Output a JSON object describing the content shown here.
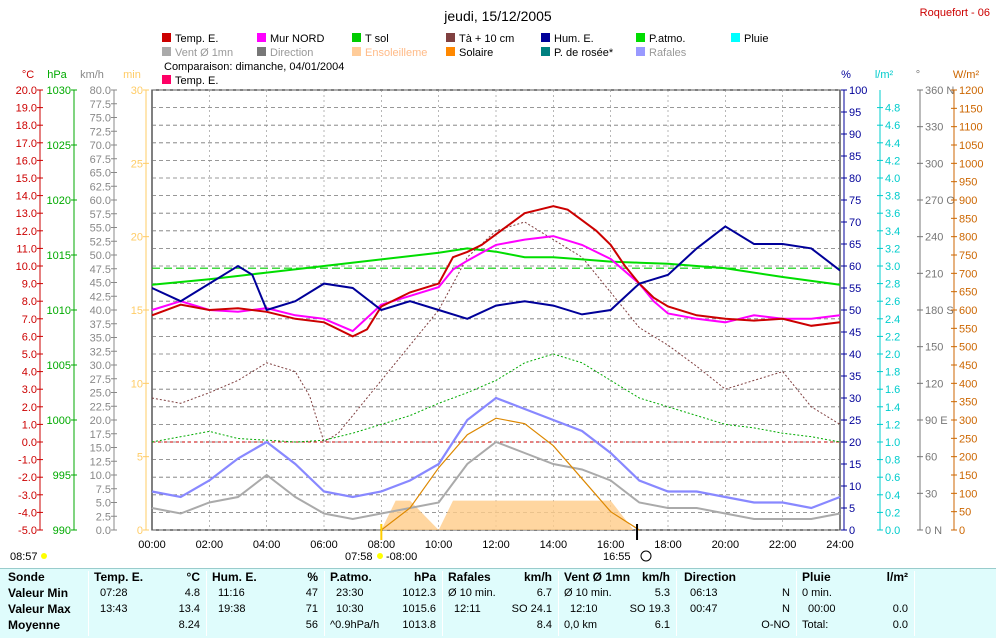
{
  "title": "jeudi, 15/12/2005",
  "station": "Roquefort - 06",
  "comparison": "Comparaison: dimanche, 04/01/2004",
  "legend": [
    {
      "label": "Temp. E.",
      "color": "#cc0000"
    },
    {
      "label": "Mur NORD",
      "color": "#ff00ff"
    },
    {
      "label": "T sol",
      "color": "#00cc00"
    },
    {
      "label": "Tà + 10 cm",
      "color": "#804040"
    },
    {
      "label": "Hum. E.",
      "color": "#000099"
    },
    {
      "label": "P.atmo.",
      "color": "#00dd00"
    },
    {
      "label": "Pluie",
      "color": "#00ffff"
    },
    {
      "label": "Vent Ø 1mn",
      "color": "#aaaaaa"
    },
    {
      "label": "Direction",
      "color": "#777777"
    },
    {
      "label": "Ensoleilleme",
      "color": "#ffcc99"
    },
    {
      "label": "Solaire",
      "color": "#ff8800"
    },
    {
      "label": "P. de rosée*",
      "color": "#008080"
    },
    {
      "label": "Rafales",
      "color": "#9999ff"
    },
    {
      "label": "Temp. E.",
      "color": "#ff0066"
    }
  ],
  "axes": {
    "temp": {
      "unit": "°C",
      "ticks": [
        "20.0",
        "19.0",
        "18.0",
        "17.0",
        "16.0",
        "15.0",
        "14.0",
        "13.0",
        "12.0",
        "11.0",
        "10.0",
        "9.0",
        "8.0",
        "7.0",
        "6.0",
        "5.0",
        "4.0",
        "3.0",
        "2.0",
        "1.0",
        "0.0",
        "-1.0",
        "-2.0",
        "-3.0",
        "-4.0",
        "-5.0"
      ],
      "color": "#cc0000"
    },
    "press": {
      "unit": "hPa",
      "ticks": [
        "1030",
        "1025",
        "1020",
        "1015",
        "1010",
        "1005",
        "1000",
        "995",
        "990"
      ],
      "color": "#00aa00"
    },
    "wind": {
      "unit": "km/h",
      "ticks": [
        "80.0",
        "77.5",
        "75.0",
        "72.5",
        "70.0",
        "67.5",
        "65.0",
        "62.5",
        "60.0",
        "57.5",
        "55.0",
        "52.5",
        "50.0",
        "47.5",
        "45.0",
        "42.5",
        "40.0",
        "37.5",
        "35.0",
        "32.5",
        "30.0",
        "27.5",
        "25.0",
        "22.5",
        "20.0",
        "17.5",
        "15.0",
        "12.5",
        "10.0",
        "7.5",
        "5.0",
        "2.5",
        "0.0"
      ],
      "color": "#888888"
    },
    "min": {
      "unit": "min",
      "ticks": [
        "30",
        "25",
        "20",
        "15",
        "10",
        "5",
        "0"
      ],
      "color": "#ffcc66"
    },
    "hum": {
      "unit": "%",
      "ticks": [
        "100",
        "95",
        "90",
        "85",
        "80",
        "75",
        "70",
        "65",
        "60",
        "55",
        "50",
        "45",
        "40",
        "35",
        "30",
        "25",
        "20",
        "15",
        "10",
        "5",
        "0"
      ],
      "color": "#000099"
    },
    "rain": {
      "unit": "l/m²",
      "ticks": [
        "4.8",
        "4.6",
        "4.4",
        "4.2",
        "4.0",
        "3.8",
        "3.6",
        "3.4",
        "3.2",
        "3.0",
        "2.8",
        "2.6",
        "2.4",
        "2.2",
        "2.0",
        "1.8",
        "1.6",
        "1.4",
        "1.2",
        "1.0",
        "0.8",
        "0.6",
        "0.4",
        "0.2",
        "0.0"
      ],
      "color": "#00cccc"
    },
    "dir": {
      "unit": "°",
      "ticks": [
        "360 N",
        "330",
        "300",
        "270 O",
        "240",
        "210",
        "180 S",
        "150",
        "120",
        "90 E",
        "60",
        "30",
        "0 N"
      ],
      "color": "#777777"
    },
    "solar": {
      "unit": "W/m²",
      "ticks": [
        "1200",
        "1150",
        "1100",
        "1050",
        "1000",
        "950",
        "900",
        "850",
        "800",
        "750",
        "700",
        "650",
        "600",
        "550",
        "500",
        "450",
        "400",
        "350",
        "300",
        "250",
        "200",
        "150",
        "100",
        "50",
        "0"
      ],
      "color": "#cc6600"
    },
    "time": [
      "00:00",
      "02:00",
      "04:00",
      "06:00",
      "08:00",
      "10:00",
      "12:00",
      "14:00",
      "16:00",
      "18:00",
      "20:00",
      "22:00",
      "24:00"
    ]
  },
  "sun": {
    "dawn": "08:57",
    "rise": "07:58",
    "rise2": "08:00",
    "set": "16:55"
  },
  "chart_data": {
    "type": "line",
    "x_unit": "hours",
    "series": [
      {
        "name": "Temp. E.",
        "unit": "°C",
        "points": [
          [
            0,
            7.2
          ],
          [
            1,
            7.8
          ],
          [
            2,
            7.5
          ],
          [
            3,
            7.6
          ],
          [
            4,
            7.4
          ],
          [
            5,
            7.0
          ],
          [
            6,
            6.8
          ],
          [
            7,
            6.0
          ],
          [
            7.5,
            6.4
          ],
          [
            8,
            7.7
          ],
          [
            9,
            8.5
          ],
          [
            10,
            9.0
          ],
          [
            10.5,
            10.5
          ],
          [
            11,
            10.8
          ],
          [
            11.5,
            11.2
          ],
          [
            12,
            11.8
          ],
          [
            12.5,
            12.4
          ],
          [
            13,
            13.0
          ],
          [
            13.5,
            13.2
          ],
          [
            14,
            13.4
          ],
          [
            14.5,
            13.2
          ],
          [
            15,
            12.6
          ],
          [
            15.5,
            12.0
          ],
          [
            16,
            11.2
          ],
          [
            16.5,
            10.0
          ],
          [
            17,
            9.0
          ],
          [
            17.5,
            8.2
          ],
          [
            18,
            7.7
          ],
          [
            19,
            7.2
          ],
          [
            20,
            7.0
          ],
          [
            21,
            6.9
          ],
          [
            22,
            7.0
          ],
          [
            23,
            6.6
          ],
          [
            24,
            6.8
          ]
        ]
      },
      {
        "name": "Mur NORD",
        "unit": "°C",
        "points": [
          [
            0,
            7.5
          ],
          [
            1,
            8.0
          ],
          [
            2,
            7.5
          ],
          [
            3,
            7.4
          ],
          [
            4,
            7.6
          ],
          [
            5,
            7.2
          ],
          [
            6,
            7.0
          ],
          [
            7,
            6.3
          ],
          [
            8,
            7.8
          ],
          [
            9,
            8.3
          ],
          [
            10,
            8.8
          ],
          [
            10.5,
            9.8
          ],
          [
            11,
            10.3
          ],
          [
            12,
            11.2
          ],
          [
            13,
            11.5
          ],
          [
            14,
            11.7
          ],
          [
            15,
            11.2
          ],
          [
            16,
            10.4
          ],
          [
            17,
            9.0
          ],
          [
            17.5,
            8.0
          ],
          [
            18,
            7.3
          ],
          [
            19,
            7.0
          ],
          [
            20,
            6.8
          ],
          [
            21,
            7.2
          ],
          [
            22,
            7.0
          ],
          [
            23,
            7.0
          ],
          [
            24,
            7.2
          ]
        ]
      },
      {
        "name": "Tà + 10 cm",
        "unit": "°C",
        "points": [
          [
            0,
            2.5
          ],
          [
            1,
            2.2
          ],
          [
            2,
            2.8
          ],
          [
            3,
            3.5
          ],
          [
            4,
            4.5
          ],
          [
            5,
            4.0
          ],
          [
            5.5,
            2.6
          ],
          [
            6,
            0.0
          ],
          [
            6.5,
            0.5
          ],
          [
            7,
            1.5
          ],
          [
            8,
            3.5
          ],
          [
            9,
            5.5
          ],
          [
            10,
            7.5
          ],
          [
            11,
            10.5
          ],
          [
            12,
            12.0
          ],
          [
            13,
            12.5
          ],
          [
            14,
            11.5
          ],
          [
            15,
            10.5
          ],
          [
            16,
            8.5
          ],
          [
            17,
            6.5
          ],
          [
            18,
            5.5
          ],
          [
            19,
            4.3
          ],
          [
            20,
            3.0
          ],
          [
            21,
            3.5
          ],
          [
            22,
            4.0
          ],
          [
            23,
            2.0
          ],
          [
            24,
            1.0
          ]
        ]
      },
      {
        "name": "T sol",
        "unit": "°C",
        "points": [
          [
            0,
            0.0
          ],
          [
            1,
            0.3
          ],
          [
            2,
            0.6
          ],
          [
            3,
            0.2
          ],
          [
            4,
            0.1
          ],
          [
            5,
            0.0
          ],
          [
            6,
            0.1
          ],
          [
            7,
            0.5
          ],
          [
            8,
            1.0
          ],
          [
            9,
            1.5
          ],
          [
            10,
            2.2
          ],
          [
            11,
            2.8
          ],
          [
            12,
            3.5
          ],
          [
            13,
            4.5
          ],
          [
            14,
            5.0
          ],
          [
            15,
            4.5
          ],
          [
            16,
            3.5
          ],
          [
            17,
            2.5
          ],
          [
            18,
            2.0
          ],
          [
            19,
            1.5
          ],
          [
            20,
            1.0
          ],
          [
            21,
            0.8
          ],
          [
            22,
            0.5
          ],
          [
            23,
            0.3
          ],
          [
            24,
            0.0
          ]
        ]
      },
      {
        "name": "Hum. E.",
        "unit": "%",
        "points": [
          [
            0,
            55
          ],
          [
            1,
            52
          ],
          [
            2,
            56
          ],
          [
            2.5,
            58
          ],
          [
            3,
            60
          ],
          [
            3.5,
            58
          ],
          [
            4,
            50
          ],
          [
            5,
            52
          ],
          [
            6,
            56
          ],
          [
            7,
            55
          ],
          [
            8,
            50
          ],
          [
            9,
            52
          ],
          [
            10,
            50
          ],
          [
            11,
            48
          ],
          [
            12,
            51
          ],
          [
            13,
            52
          ],
          [
            14,
            51
          ],
          [
            15,
            49
          ],
          [
            16,
            50
          ],
          [
            17,
            56
          ],
          [
            18,
            58
          ],
          [
            19,
            64
          ],
          [
            20,
            69
          ],
          [
            21,
            65
          ],
          [
            22,
            65
          ],
          [
            23,
            64
          ],
          [
            24,
            59
          ]
        ]
      },
      {
        "name": "P.atmo.",
        "unit": "hPa",
        "points": [
          [
            0,
            1012.3
          ],
          [
            2,
            1012.8
          ],
          [
            4,
            1013.4
          ],
          [
            6,
            1014.0
          ],
          [
            8,
            1014.6
          ],
          [
            10,
            1015.2
          ],
          [
            11,
            1015.6
          ],
          [
            12,
            1015.3
          ],
          [
            13,
            1014.8
          ],
          [
            14,
            1014.8
          ],
          [
            15,
            1014.6
          ],
          [
            16,
            1014.4
          ],
          [
            17,
            1014.3
          ],
          [
            18,
            1014.2
          ],
          [
            20,
            1013.8
          ],
          [
            22,
            1013.0
          ],
          [
            24,
            1012.3
          ]
        ]
      },
      {
        "name": "Vent Ø 1mn",
        "unit": "km/h",
        "points": [
          [
            0,
            4
          ],
          [
            1,
            3
          ],
          [
            2,
            5
          ],
          [
            3,
            6
          ],
          [
            4,
            10
          ],
          [
            5,
            6
          ],
          [
            6,
            3
          ],
          [
            7,
            2
          ],
          [
            8,
            3
          ],
          [
            9,
            4
          ],
          [
            10,
            5
          ],
          [
            11,
            12
          ],
          [
            12,
            16
          ],
          [
            13,
            14
          ],
          [
            14,
            12
          ],
          [
            15,
            11
          ],
          [
            16,
            9
          ],
          [
            17,
            5
          ],
          [
            18,
            4
          ],
          [
            19,
            4
          ],
          [
            20,
            3
          ],
          [
            21,
            2
          ],
          [
            22,
            2
          ],
          [
            23,
            2
          ],
          [
            24,
            3
          ]
        ]
      },
      {
        "name": "Rafales",
        "unit": "km/h",
        "points": [
          [
            0,
            7
          ],
          [
            1,
            6
          ],
          [
            2,
            9
          ],
          [
            3,
            13
          ],
          [
            4,
            16
          ],
          [
            5,
            12
          ],
          [
            6,
            7
          ],
          [
            7,
            6
          ],
          [
            8,
            7
          ],
          [
            9,
            9
          ],
          [
            10,
            12
          ],
          [
            11,
            20
          ],
          [
            12,
            24
          ],
          [
            13,
            22
          ],
          [
            14,
            20
          ],
          [
            15,
            18
          ],
          [
            16,
            14
          ],
          [
            17,
            9
          ],
          [
            18,
            7
          ],
          [
            19,
            7
          ],
          [
            20,
            6
          ],
          [
            21,
            5
          ],
          [
            22,
            5
          ],
          [
            23,
            4
          ],
          [
            24,
            6
          ]
        ]
      },
      {
        "name": "Solaire",
        "unit": "W/m²",
        "points": [
          [
            8,
            0
          ],
          [
            9,
            60
          ],
          [
            10,
            170
          ],
          [
            11,
            260
          ],
          [
            12,
            305
          ],
          [
            13,
            290
          ],
          [
            14,
            230
          ],
          [
            15,
            140
          ],
          [
            16,
            50
          ],
          [
            17,
            0
          ]
        ]
      },
      {
        "name": "Ensoleilleme",
        "unit": "min",
        "points": [
          [
            8,
            0
          ],
          [
            8.5,
            2
          ],
          [
            9,
            2
          ],
          [
            10,
            0
          ],
          [
            10.5,
            2
          ],
          [
            11,
            2
          ],
          [
            12,
            2
          ],
          [
            13,
            2
          ],
          [
            14,
            2
          ],
          [
            15,
            2
          ],
          [
            16,
            2
          ],
          [
            16.8,
            0
          ]
        ]
      }
    ]
  },
  "table": {
    "rows_label": [
      "Sonde",
      "Valeur Min",
      "Valeur Max",
      "Moyenne"
    ],
    "temp": {
      "head": "Temp. E.",
      "unit": "°C",
      "min_t": "07:28",
      "min_v": "4.8",
      "max_t": "13:43",
      "max_v": "13.4",
      "avg": "8.24"
    },
    "hum": {
      "head": "Hum. E.",
      "unit": "%",
      "min_t": "11:16",
      "min_v": "47",
      "max_t": "19:38",
      "max_v": "71",
      "avg": "56"
    },
    "press": {
      "head": "P.atmo.",
      "unit": "hPa",
      "min_t": "23:30",
      "min_v": "1012.3",
      "max_t": "10:30",
      "max_v": "1015.6",
      "avg_l": "^0.9hPa/h",
      "avg": "1013.8"
    },
    "gust": {
      "head": "Rafales",
      "unit": "km/h",
      "min_t": "Ø 10 min.",
      "min_v": "6.7",
      "max_t": "12:11",
      "max_v": "SO 24.1",
      "avg": "8.4"
    },
    "wind": {
      "head": "Vent Ø 1mn",
      "unit": "km/h",
      "min_t": "Ø 10 min.",
      "min_v": "5.3",
      "max_t": "12:10",
      "max_v": "SO 19.3",
      "avg_l": "0,0 km",
      "avg": "6.1"
    },
    "dir": {
      "head": "Direction",
      "min_t": "06:13",
      "min_v": "N",
      "max_t": "00:47",
      "max_v": "N",
      "avg": "O-NO"
    },
    "rain": {
      "head": "Pluie",
      "unit": "l/m²",
      "min_t": "0 min.",
      "max_t": "00:00",
      "max_v": "0.0",
      "avg_l": "Total:",
      "avg": "0.0"
    }
  }
}
